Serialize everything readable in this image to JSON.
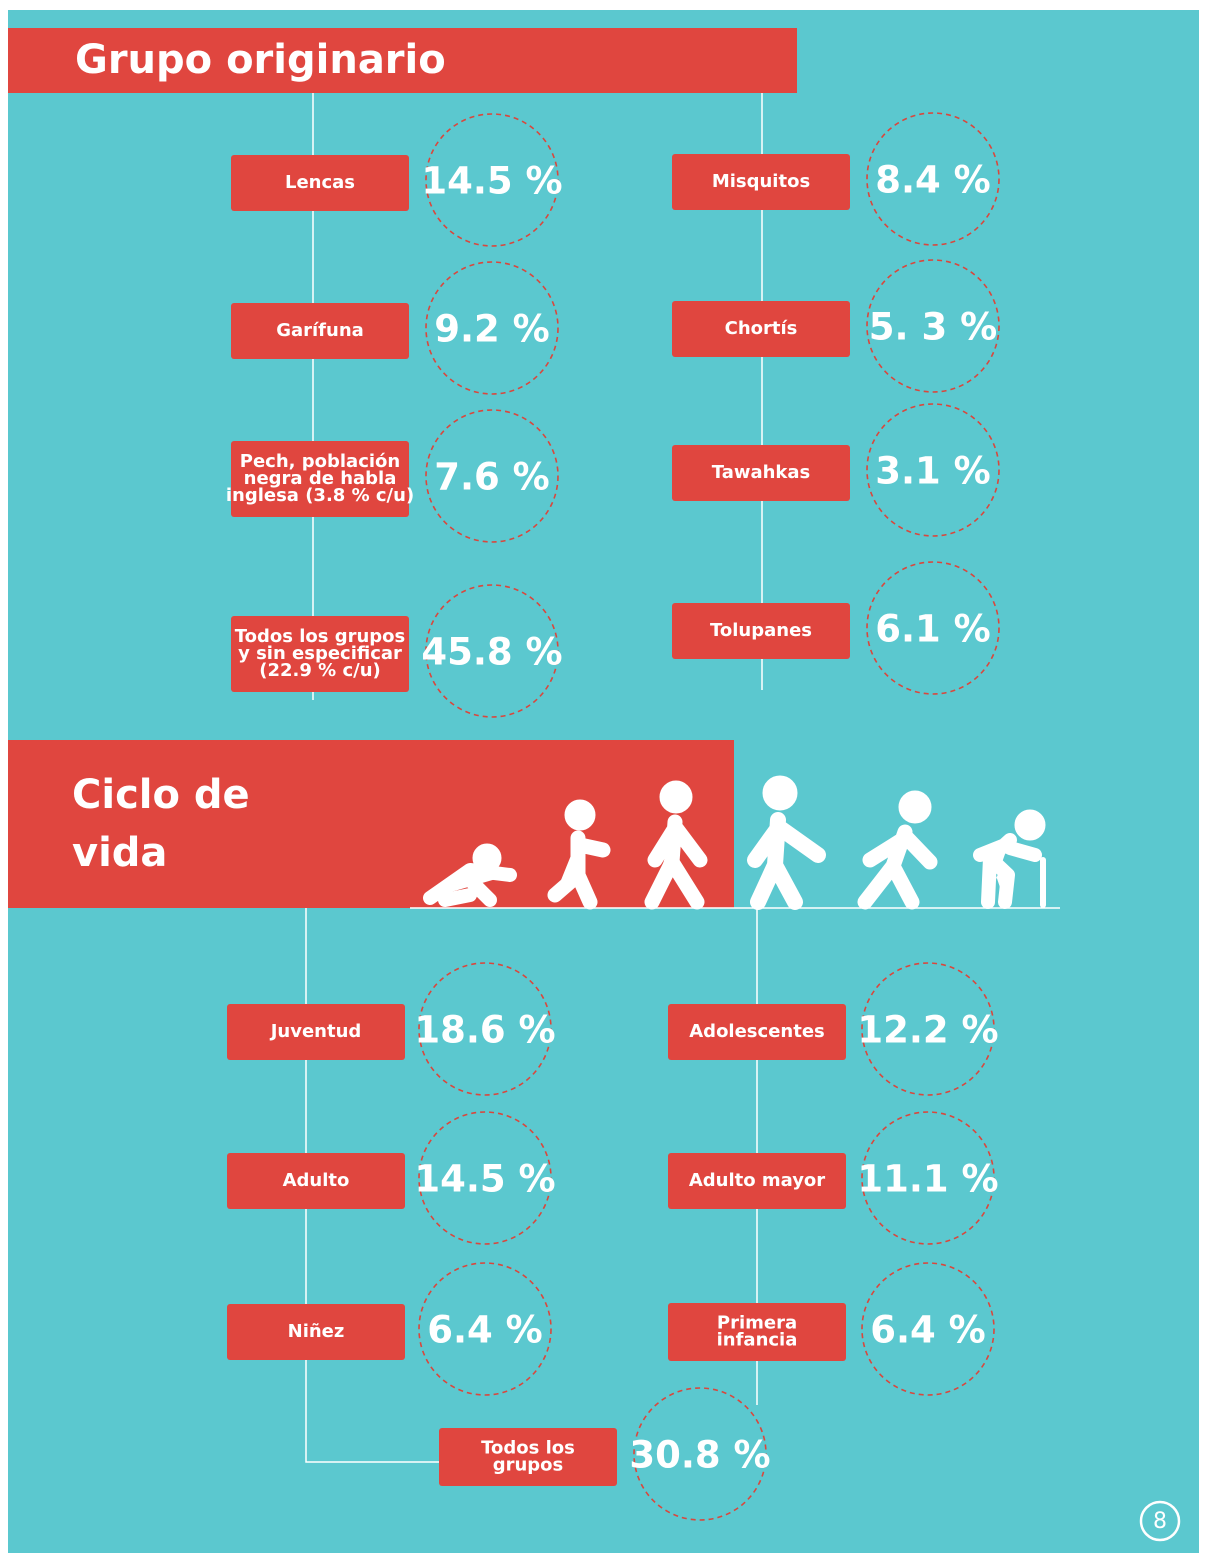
{
  "sections": [
    {
      "title": [
        "Grupo originario"
      ],
      "left": [
        {
          "label": [
            "Lencas"
          ],
          "value": "14.5 %"
        },
        {
          "label": [
            "Garífuna"
          ],
          "value": "9.2 %"
        },
        {
          "label": [
            "Pech, población",
            "negra de habla",
            "inglesa (3.8 % c/u)"
          ],
          "value": "7.6 %"
        },
        {
          "label": [
            "Todos los grupos",
            "y sin especificar",
            "(22.9 % c/u)"
          ],
          "value": "45.8 %"
        }
      ],
      "right": [
        {
          "label": [
            "Misquitos"
          ],
          "value": "8.4 %"
        },
        {
          "label": [
            "Chortís"
          ],
          "value": "5. 3 %"
        },
        {
          "label": [
            "Tawahkas"
          ],
          "value": "3.1 %"
        },
        {
          "label": [
            "Tolupanes"
          ],
          "value": "6.1 %"
        }
      ]
    },
    {
      "title": [
        "Ciclo de",
        "vida"
      ],
      "left": [
        {
          "label": [
            "Juventud"
          ],
          "value": "18.6 %"
        },
        {
          "label": [
            "Adulto"
          ],
          "value": "14.5 %"
        },
        {
          "label": [
            "Niñez"
          ],
          "value": "6.4 %"
        }
      ],
      "right": [
        {
          "label": [
            "Adolescentes"
          ],
          "value": "12.2 %"
        },
        {
          "label": [
            "Adulto mayor"
          ],
          "value": "11.1 %"
        },
        {
          "label": [
            "Primera",
            "infancia"
          ],
          "value": "6.4 %"
        }
      ],
      "bottom": [
        {
          "label": [
            "Todos los",
            "grupos"
          ],
          "value": "30.8 %"
        }
      ]
    }
  ],
  "page_number": "8"
}
